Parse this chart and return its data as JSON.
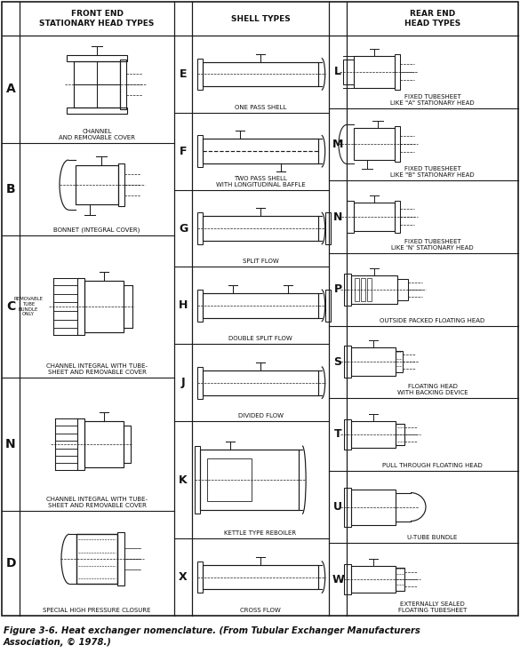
{
  "title_line1": "Figure 3-6. Heat exchanger nomenclature. (From Tubular Exchanger Manufacturers",
  "title_line2": "Association, © 1978.)",
  "col1_header": "FRONT END\nSTATIONARY HEAD TYPES",
  "col2_header": "SHELL TYPES",
  "col3_header": "REAR END\nHEAD TYPES",
  "front_end_letters": [
    "A",
    "B",
    "C",
    "N",
    "D"
  ],
  "front_end_labels": [
    "CHANNEL\nAND REMOVABLE COVER",
    "BONNET (INTEGRAL COVER)",
    "CHANNEL INTEGRAL WITH TUBE-\nSHEET AND REMOVABLE COVER",
    "CHANNEL INTEGRAL WITH TUBE-\nSHEET AND REMOVABLE COVER",
    "SPECIAL HIGH PRESSURE CLOSURE"
  ],
  "shell_letters": [
    "E",
    "F",
    "G",
    "H",
    "J",
    "K",
    "X"
  ],
  "shell_labels": [
    "ONE PASS SHELL",
    "TWO PASS SHELL\nWITH LONGITUDINAL BAFFLE",
    "SPLIT FLOW",
    "DOUBLE SPLIT FLOW",
    "DIVIDED FLOW",
    "KETTLE TYPE REBOILER",
    "CROSS FLOW"
  ],
  "rear_end_letters": [
    "L",
    "M",
    "N",
    "P",
    "S",
    "T",
    "U",
    "W"
  ],
  "rear_end_labels": [
    "FIXED TUBESHEET\nLIKE \"A\" STATIONARY HEAD",
    "FIXED TUBESHEET\nLIKE \"B\" STATIONARY HEAD",
    "FIXED TUBESHEET\nLIKE 'N' STATIONARY HEAD",
    "OUTSIDE PACKED FLOATING HEAD",
    "FLOATING HEAD\nWITH BACKING DEVICE",
    "PULL THROUGH FLOATING HEAD",
    "U-TUBE BUNDLE",
    "EXTERNALLY SEALED\nFLOATING TUBESHEET"
  ],
  "lc": "#1a1a1a",
  "fig_width": 5.85,
  "fig_height": 7.53,
  "dpi": 100
}
